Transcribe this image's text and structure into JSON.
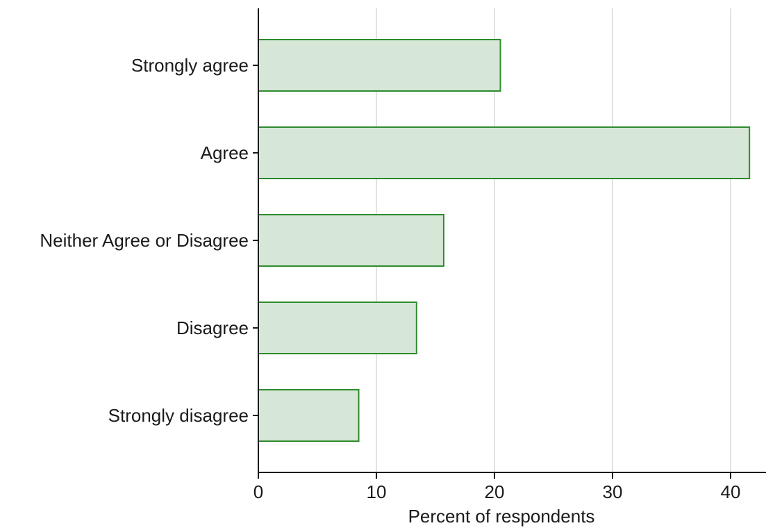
{
  "chart_data": {
    "type": "bar",
    "orientation": "horizontal",
    "categories": [
      "Strongly agree",
      "Agree",
      "Neither Agree or Disagree",
      "Disagree",
      "Strongly disagree"
    ],
    "values": [
      20.5,
      41.6,
      15.7,
      13.4,
      8.5
    ],
    "xlabel": "Percent of respondents",
    "ylabel": "",
    "xlim": [
      0,
      43
    ],
    "xticks": [
      0,
      10,
      20,
      30,
      40
    ],
    "grid": "vertical",
    "legend": "none",
    "colors": {
      "bar_fill": "#d7e7d7",
      "bar_stroke": "#2e8b2e",
      "axis": "#1a1a1a",
      "grid": "#d9d9d9"
    }
  }
}
